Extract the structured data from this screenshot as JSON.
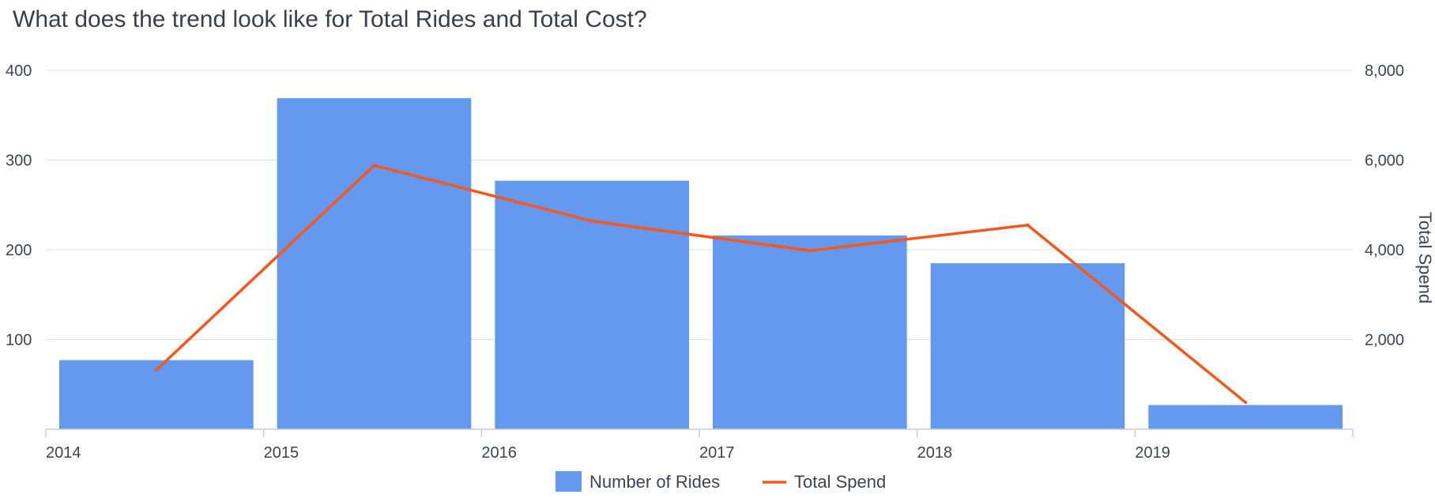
{
  "chart_data": {
    "type": "bar",
    "title": "What does the trend look like for Total Rides and Total Cost?",
    "categories": [
      "2014",
      "2015",
      "2016",
      "2017",
      "2018",
      "2019"
    ],
    "series": [
      {
        "name": "Number of Rides",
        "kind": "bar",
        "axis": "left",
        "color": "#6499ef",
        "values": [
          77,
          369,
          277,
          216,
          185,
          27
        ]
      },
      {
        "name": "Total Spend",
        "kind": "line",
        "axis": "right",
        "color": "#f4581c",
        "values": [
          1320,
          5880,
          4640,
          3980,
          4550,
          600
        ]
      }
    ],
    "y_left": {
      "label": "",
      "range": [
        0,
        400
      ],
      "ticks": [
        "100",
        "200",
        "300",
        "400"
      ],
      "tick_values": [
        100,
        200,
        300,
        400
      ]
    },
    "y_right": {
      "label": "Total Spend",
      "range": [
        0,
        8000
      ],
      "ticks": [
        "2,000",
        "4,000",
        "6,000",
        "8,000"
      ],
      "tick_values": [
        2000,
        4000,
        6000,
        8000
      ]
    },
    "grid": true,
    "legend": "bottom-center"
  }
}
